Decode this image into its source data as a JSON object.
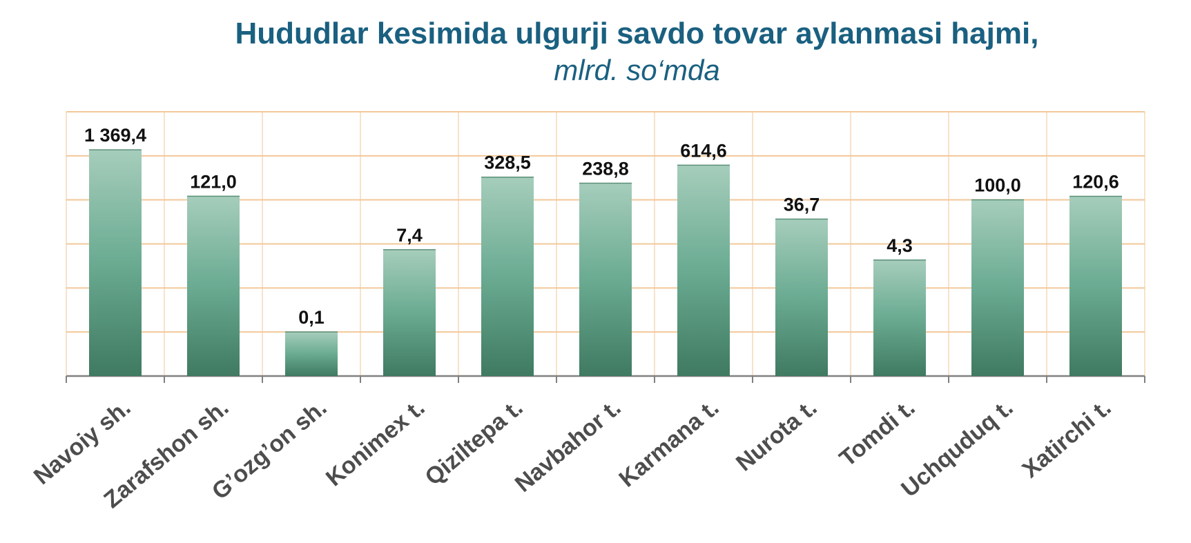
{
  "title": "Hududlar kesimida ulgurji savdo tovar aylanmasi hajmi,",
  "subtitle": "mlrd. so‘mda",
  "chart_data": {
    "type": "bar",
    "title": "Hududlar kesimida ulgurji savdo tovar aylanmasi hajmi,",
    "subtitle": "mlrd. so‘mda",
    "categories": [
      "Navoiy sh.",
      "Zarafshon sh.",
      "G’ozg’on sh.",
      "Konimex t.",
      "Qiziltepa t.",
      "Navbahor t.",
      "Karmana t.",
      "Nurota t.",
      "Tomdi t.",
      "Uchquduq t.",
      "Xatirchi t."
    ],
    "values": [
      1369.4,
      121.0,
      0.1,
      7.4,
      328.5,
      238.8,
      614.6,
      36.7,
      4.3,
      100.0,
      120.6
    ],
    "value_labels": [
      "1 369,4",
      "121,0",
      "0,1",
      "7,4",
      "328,5",
      "238,8",
      "614,6",
      "36,7",
      "4,3",
      "100,0",
      "120,6"
    ],
    "xlabel": "",
    "ylabel": "",
    "y_scale": "log",
    "ylim": [
      0.01,
      10000
    ],
    "grid": true,
    "legend": "none",
    "colors": {
      "bar_top": "#a6cdbc",
      "bar_mid": "#6aab92",
      "bar_bottom": "#3f7a61",
      "grid": "#f2c89a",
      "axis": "#808080",
      "title": "#1a6080"
    }
  }
}
